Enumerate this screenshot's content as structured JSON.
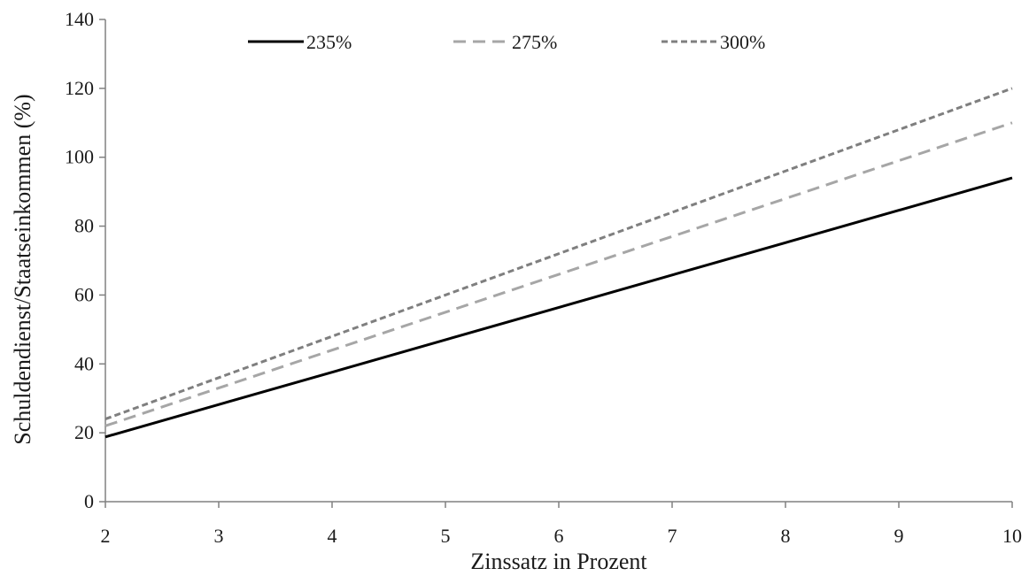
{
  "chart_data": {
    "type": "line",
    "title": "",
    "xlabel": "Zinssatz in Prozent",
    "ylabel": "Schuldendienst/Staatseinkommen (%)",
    "xlim": [
      2,
      10
    ],
    "ylim": [
      0,
      140
    ],
    "x_ticks": [
      2,
      3,
      4,
      5,
      6,
      7,
      8,
      9,
      10
    ],
    "y_ticks": [
      0,
      20,
      40,
      60,
      80,
      100,
      120,
      140
    ],
    "grid": false,
    "legend_position": "top",
    "x": [
      2,
      10
    ],
    "series": [
      {
        "name": "235%",
        "values": [
          18.8,
          94.0
        ],
        "color": "#000000",
        "dash": "solid"
      },
      {
        "name": "275%",
        "values": [
          22.0,
          110.0
        ],
        "color": "#a6a6a6",
        "dash": "long-dash"
      },
      {
        "name": "300%",
        "values": [
          24.0,
          120.0
        ],
        "color": "#7f7f7f",
        "dash": "short-dash"
      }
    ]
  }
}
